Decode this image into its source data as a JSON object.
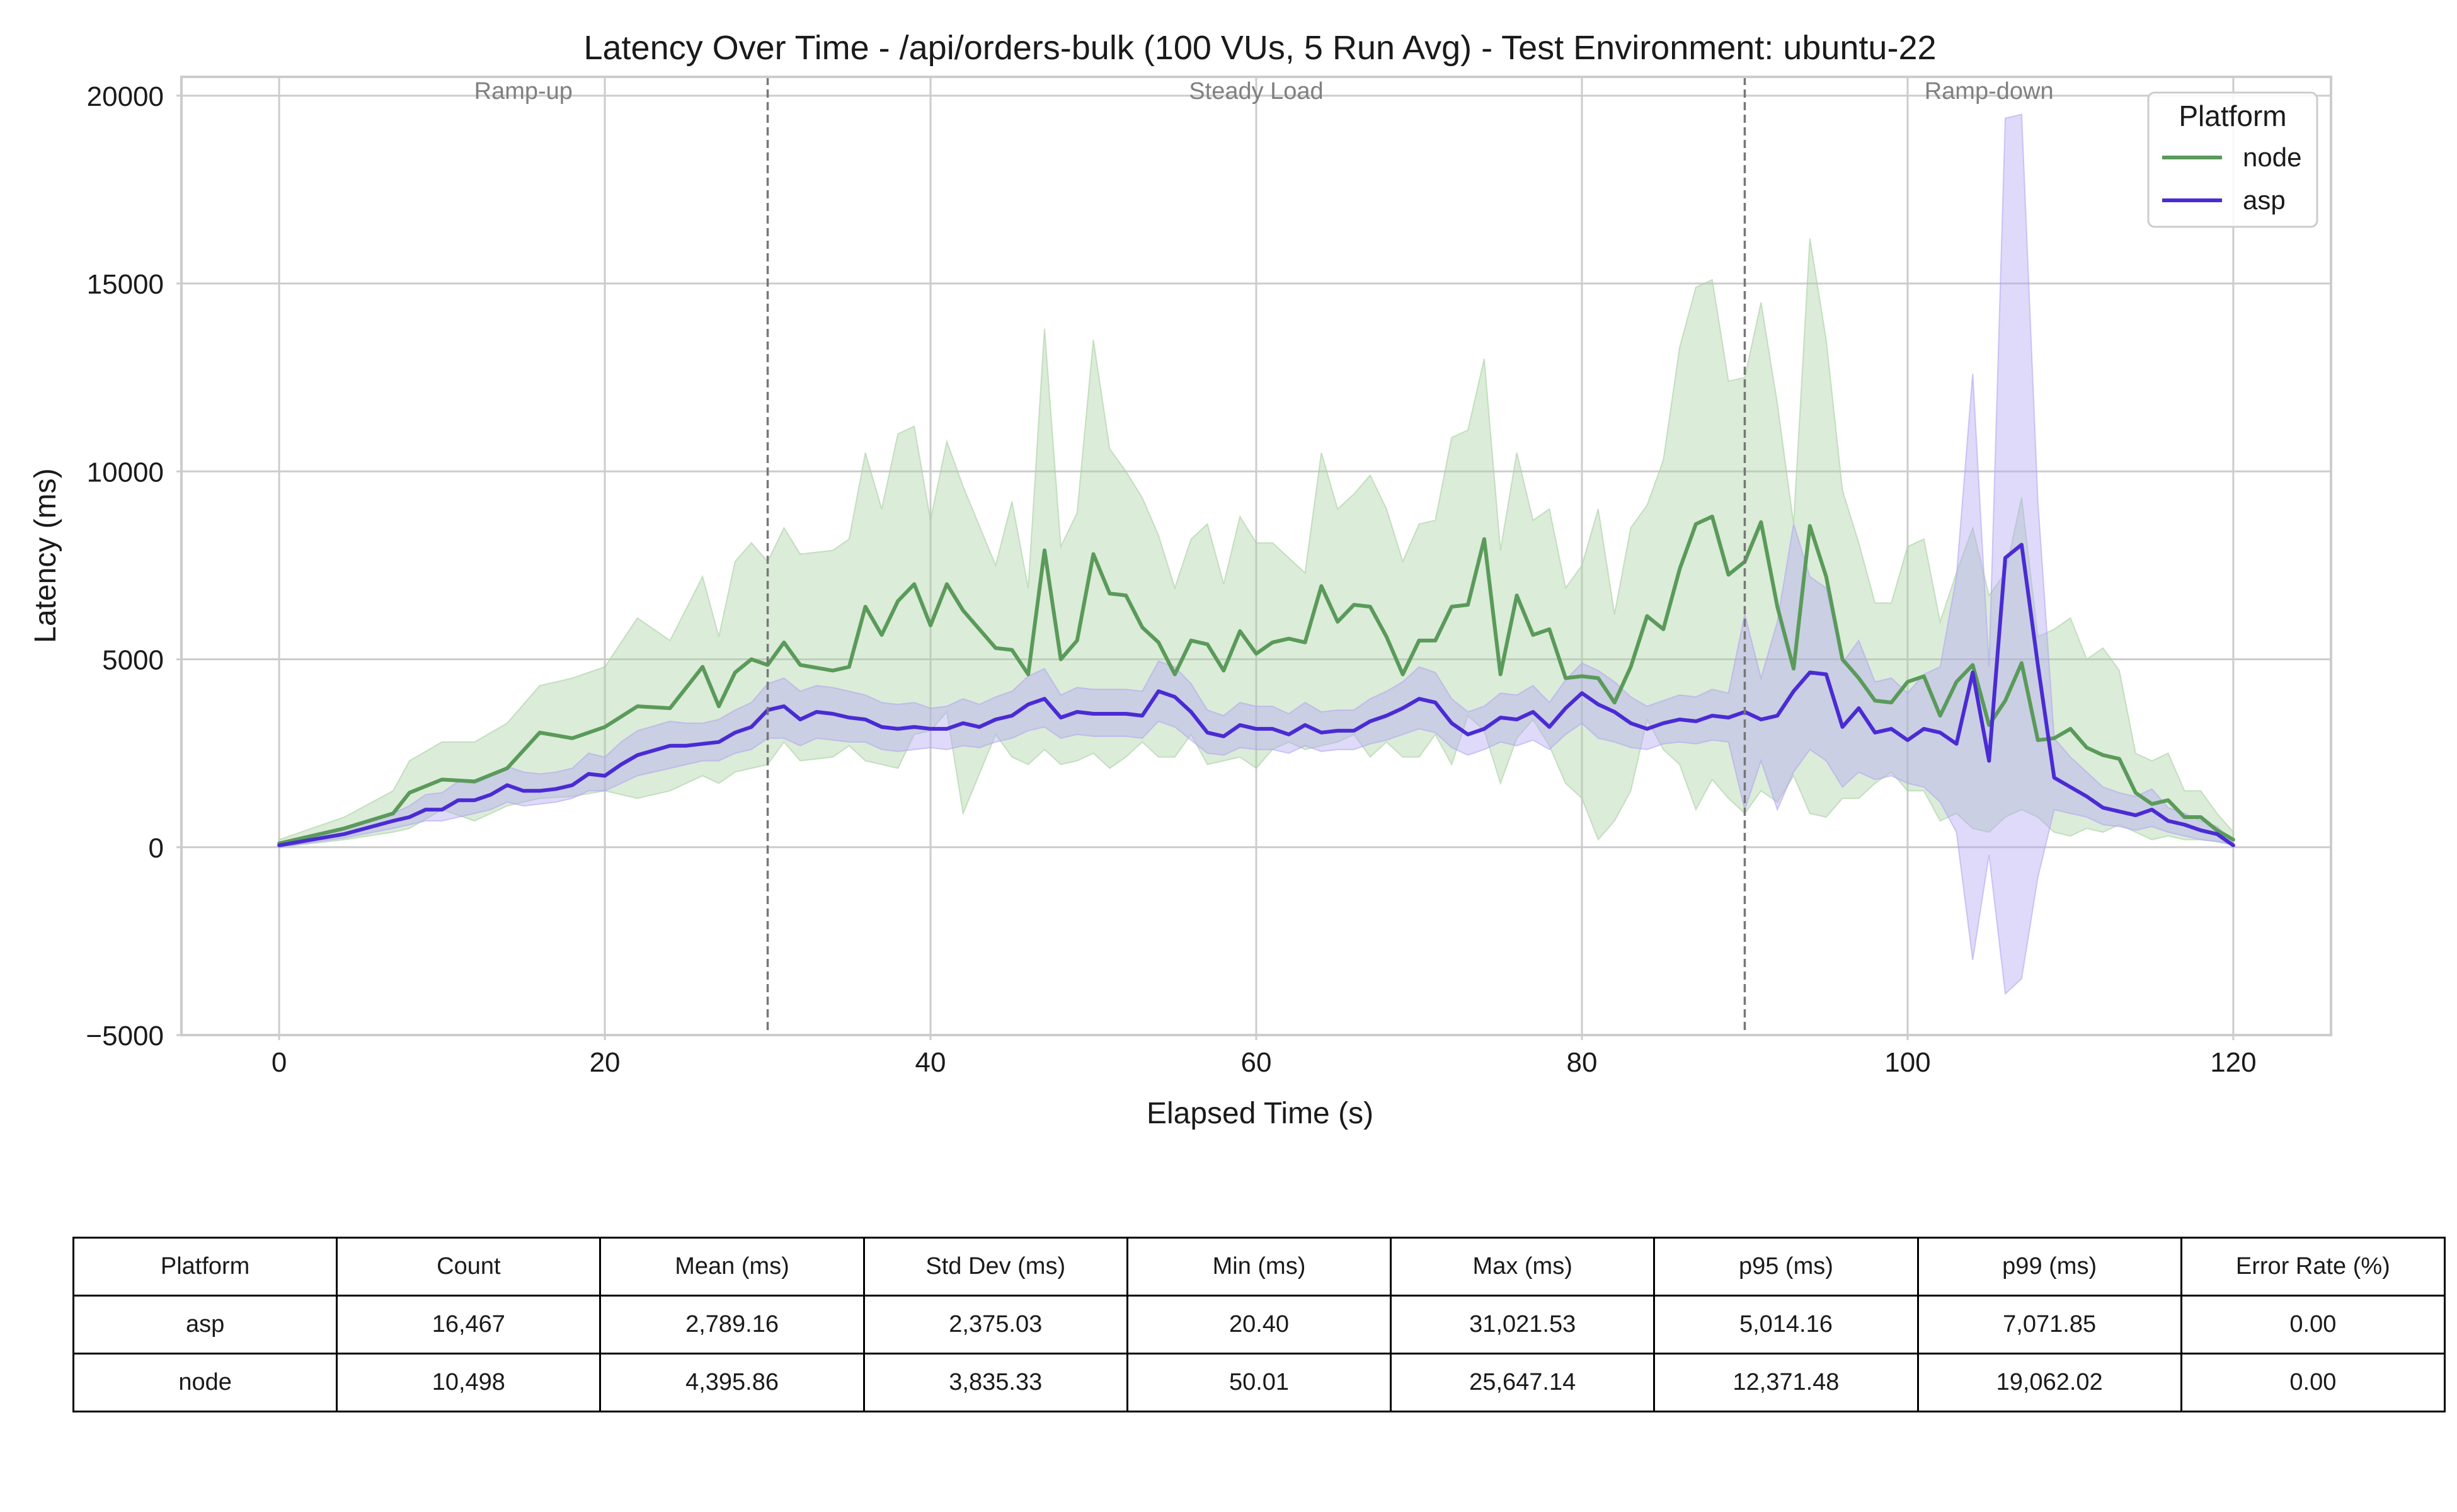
{
  "chart_data": {
    "type": "line",
    "title": "Latency Over Time - /api/orders-bulk (100 VUs, 5 Run Avg) - Test Environment: ubuntu-22",
    "xlabel": "Elapsed Time (s)",
    "ylabel": "Latency (ms)",
    "xlim": [
      -6,
      126
    ],
    "ylim": [
      -5000,
      20500
    ],
    "xticks": [
      0,
      20,
      40,
      60,
      80,
      100,
      120
    ],
    "yticks": [
      -5000,
      0,
      5000,
      10000,
      15000,
      20000
    ],
    "grid": true,
    "legend": {
      "title": "Platform",
      "placement": "top-right"
    },
    "phases": [
      {
        "label": "Ramp-up",
        "x": 15
      },
      {
        "label": "Steady Load",
        "x": 60
      },
      {
        "label": "Ramp-down",
        "x": 105
      }
    ],
    "phase_boundaries": [
      30,
      90
    ],
    "series": [
      {
        "name": "node",
        "color": "#5a9a5a",
        "band_color": "#a9d1a3",
        "x": [
          0,
          4,
          7,
          8,
          10,
          12,
          14,
          16,
          18,
          20,
          22,
          24,
          26,
          27,
          28,
          29,
          30,
          31,
          32,
          34,
          35,
          36,
          37,
          38,
          39,
          40,
          41,
          42,
          44,
          45,
          46,
          47,
          48,
          49,
          50,
          51,
          52,
          53,
          54,
          55,
          56,
          57,
          58,
          59,
          60,
          61,
          62,
          63,
          64,
          65,
          66,
          67,
          68,
          69,
          70,
          71,
          72,
          73,
          74,
          75,
          76,
          77,
          78,
          79,
          80,
          81,
          82,
          83,
          84,
          85,
          86,
          87,
          88,
          89,
          90,
          91,
          92,
          93,
          94,
          95,
          96,
          97,
          98,
          99,
          100,
          101,
          102,
          103,
          104,
          105,
          106,
          107,
          108,
          109,
          110,
          111,
          112,
          113,
          114,
          115,
          116,
          117,
          118,
          119,
          120
        ],
        "mean": [
          100,
          500,
          900,
          1450,
          1800,
          1750,
          2100,
          3050,
          2900,
          3200,
          3750,
          3700,
          4800,
          3750,
          4650,
          5000,
          4850,
          5450,
          4850,
          4700,
          4800,
          6400,
          5650,
          6550,
          7000,
          5900,
          7000,
          6300,
          5300,
          5250,
          4600,
          7900,
          5000,
          5500,
          7800,
          6750,
          6700,
          5850,
          5450,
          4600,
          5500,
          5400,
          4700,
          5750,
          5150,
          5450,
          5550,
          5450,
          6950,
          6000,
          6450,
          6400,
          5600,
          4600,
          5500,
          5500,
          6400,
          6450,
          8200,
          4600,
          6700,
          5650,
          5800,
          4500,
          4550,
          4500,
          3850,
          4800,
          6150,
          5800,
          7400,
          8600,
          8800,
          7250,
          7600,
          8650,
          6400,
          4750,
          8550,
          7200,
          5000,
          4500,
          3900,
          3850,
          4400,
          4550,
          3500,
          4400,
          4850,
          3250,
          3900,
          4900,
          2850,
          2900,
          3150,
          2650,
          2450,
          2350,
          1450,
          1150,
          1250,
          800,
          800,
          450,
          200
        ],
        "lower": [
          0,
          200,
          400,
          500,
          1000,
          700,
          1100,
          1300,
          1350,
          1500,
          1300,
          1500,
          1900,
          1700,
          2000,
          2100,
          2200,
          2800,
          2300,
          2400,
          2700,
          2300,
          2200,
          2100,
          3000,
          3100,
          3600,
          900,
          3000,
          2400,
          2200,
          2600,
          2200,
          2300,
          2500,
          2100,
          2400,
          2800,
          2400,
          2400,
          3000,
          2200,
          2300,
          2400,
          2100,
          2600,
          2800,
          2600,
          2700,
          2800,
          3000,
          2400,
          2800,
          2400,
          2400,
          3000,
          2200,
          3500,
          3100,
          1700,
          2900,
          3400,
          2700,
          1700,
          1300,
          200,
          700,
          1500,
          3400,
          2600,
          2200,
          1000,
          1800,
          1300,
          900,
          1500,
          1200,
          1900,
          900,
          800,
          1300,
          1300,
          1700,
          2000,
          1500,
          1500,
          700,
          900,
          500,
          400,
          800,
          1000,
          800,
          400,
          300,
          500,
          400,
          600,
          400,
          200,
          300,
          200,
          200,
          150,
          100
        ],
        "upper": [
          200,
          800,
          1500,
          2300,
          2800,
          2800,
          3300,
          4300,
          4500,
          4800,
          6100,
          5500,
          7200,
          5600,
          7600,
          8100,
          7600,
          8500,
          7800,
          7900,
          8200,
          10500,
          9000,
          11000,
          11200,
          8700,
          10800,
          9600,
          7500,
          9200,
          6900,
          13800,
          8000,
          8900,
          13500,
          10600,
          10000,
          9300,
          8300,
          6900,
          8200,
          8600,
          7000,
          8800,
          8100,
          8100,
          7700,
          7300,
          10500,
          9000,
          9400,
          9900,
          9000,
          7600,
          8600,
          8700,
          10900,
          11100,
          13000,
          7900,
          10500,
          8700,
          9000,
          6900,
          7500,
          9000,
          6200,
          8500,
          9100,
          10300,
          13300,
          14900,
          15100,
          12400,
          12500,
          14500,
          11800,
          8600,
          16200,
          13500,
          9500,
          8100,
          6500,
          6500,
          8000,
          8200,
          6000,
          7300,
          8500,
          6700,
          7300,
          9300,
          5600,
          5800,
          6100,
          5000,
          5300,
          4700,
          2500,
          2300,
          2500,
          1500,
          1500,
          900,
          400
        ]
      },
      {
        "name": "asp",
        "color": "#4a2bd4",
        "band_color": "#b3a6f2",
        "x": [
          0,
          4,
          7,
          8,
          9,
          10,
          11,
          12,
          13,
          14,
          15,
          16,
          17,
          18,
          19,
          20,
          21,
          22,
          24,
          25,
          26,
          27,
          28,
          29,
          30,
          31,
          32,
          33,
          34,
          35,
          36,
          37,
          38,
          39,
          40,
          41,
          42,
          43,
          44,
          45,
          46,
          47,
          48,
          49,
          50,
          51,
          52,
          53,
          54,
          55,
          56,
          57,
          58,
          59,
          60,
          61,
          62,
          63,
          64,
          65,
          66,
          67,
          68,
          69,
          70,
          71,
          72,
          73,
          74,
          75,
          76,
          77,
          78,
          79,
          80,
          81,
          82,
          83,
          84,
          85,
          86,
          87,
          88,
          89,
          90,
          91,
          92,
          93,
          94,
          95,
          96,
          97,
          98,
          99,
          100,
          101,
          102,
          103,
          104,
          105,
          106,
          107,
          108,
          109,
          110,
          111,
          112,
          113,
          114,
          115,
          116,
          117,
          118,
          119,
          120
        ],
        "mean": [
          50,
          350,
          700,
          800,
          1000,
          1000,
          1250,
          1250,
          1400,
          1650,
          1500,
          1500,
          1550,
          1650,
          1950,
          1900,
          2200,
          2450,
          2700,
          2700,
          2750,
          2800,
          3050,
          3200,
          3650,
          3750,
          3400,
          3600,
          3550,
          3450,
          3400,
          3200,
          3150,
          3200,
          3150,
          3150,
          3300,
          3200,
          3400,
          3500,
          3800,
          3950,
          3450,
          3600,
          3550,
          3550,
          3550,
          3500,
          4150,
          4000,
          3600,
          3050,
          2950,
          3250,
          3150,
          3150,
          3000,
          3250,
          3050,
          3100,
          3100,
          3350,
          3500,
          3700,
          3950,
          3850,
          3300,
          3000,
          3150,
          3450,
          3400,
          3600,
          3200,
          3700,
          4100,
          3800,
          3600,
          3300,
          3150,
          3300,
          3400,
          3350,
          3500,
          3450,
          3600,
          3400,
          3500,
          4150,
          4650,
          4600,
          3200,
          3700,
          3050,
          3150,
          2850,
          3150,
          3050,
          2750,
          4650,
          2300,
          7700,
          8050,
          4850,
          1850,
          1600,
          1350,
          1050,
          950,
          850,
          1000,
          700,
          600,
          450,
          350,
          50
        ],
        "lower": [
          0,
          250,
          500,
          600,
          700,
          700,
          800,
          900,
          1000,
          1200,
          1100,
          1150,
          1200,
          1300,
          1500,
          1500,
          1700,
          1900,
          2100,
          2200,
          2300,
          2300,
          2500,
          2600,
          2900,
          2900,
          2700,
          2900,
          2850,
          2800,
          2800,
          2600,
          2550,
          2600,
          2650,
          2600,
          2700,
          2650,
          2800,
          2900,
          3100,
          3200,
          2900,
          3000,
          2950,
          2950,
          2950,
          2900,
          3350,
          3200,
          2850,
          2500,
          2450,
          2650,
          2600,
          2600,
          2500,
          2700,
          2550,
          2600,
          2600,
          2750,
          2850,
          3000,
          3150,
          3050,
          2650,
          2450,
          2600,
          2800,
          2700,
          2850,
          2600,
          3000,
          3300,
          2900,
          2800,
          2650,
          2600,
          2750,
          2800,
          2750,
          2850,
          2800,
          1000,
          2300,
          1000,
          2000,
          2600,
          2300,
          1600,
          2000,
          1800,
          1900,
          1700,
          1600,
          1200,
          400,
          -3000,
          -200,
          -3900,
          -3500,
          -800,
          1000,
          900,
          800,
          600,
          550,
          450,
          550,
          400,
          300,
          200,
          150,
          50
        ],
        "upper": [
          100,
          500,
          900,
          1100,
          1400,
          1450,
          1750,
          1700,
          1900,
          2150,
          2000,
          1950,
          2000,
          2100,
          2500,
          2400,
          2800,
          3100,
          3350,
          3300,
          3300,
          3400,
          3650,
          3850,
          4350,
          4500,
          4150,
          4300,
          4250,
          4150,
          4050,
          3850,
          3800,
          3850,
          3700,
          3750,
          3950,
          3800,
          4000,
          4150,
          4550,
          4750,
          4050,
          4250,
          4200,
          4200,
          4200,
          4150,
          4950,
          4800,
          4350,
          3650,
          3500,
          3850,
          3750,
          3750,
          3550,
          3850,
          3600,
          3650,
          3650,
          3950,
          4150,
          4400,
          4800,
          4650,
          3950,
          3600,
          3750,
          4100,
          4050,
          4300,
          3850,
          4450,
          4900,
          4700,
          4400,
          4000,
          3750,
          3900,
          4050,
          4000,
          4200,
          4100,
          6200,
          4500,
          6000,
          8600,
          7200,
          6900,
          4900,
          5500,
          4400,
          4500,
          4100,
          4600,
          4800,
          7200,
          12600,
          4800,
          19400,
          19500,
          9200,
          2900,
          2400,
          2000,
          1600,
          1450,
          1350,
          1550,
          1050,
          900,
          700,
          550,
          100
        ]
      }
    ]
  },
  "stats_table": {
    "headers": [
      "Platform",
      "Count",
      "Mean (ms)",
      "Std Dev (ms)",
      "Min (ms)",
      "Max (ms)",
      "p95 (ms)",
      "p99 (ms)",
      "Error Rate (%)"
    ],
    "rows": [
      [
        "asp",
        "16,467",
        "2,789.16",
        "2,375.03",
        "20.40",
        "31,021.53",
        "5,014.16",
        "7,071.85",
        "0.00"
      ],
      [
        "node",
        "10,498",
        "4,395.86",
        "3,835.33",
        "50.01",
        "25,647.14",
        "12,371.48",
        "19,062.02",
        "0.00"
      ]
    ]
  }
}
